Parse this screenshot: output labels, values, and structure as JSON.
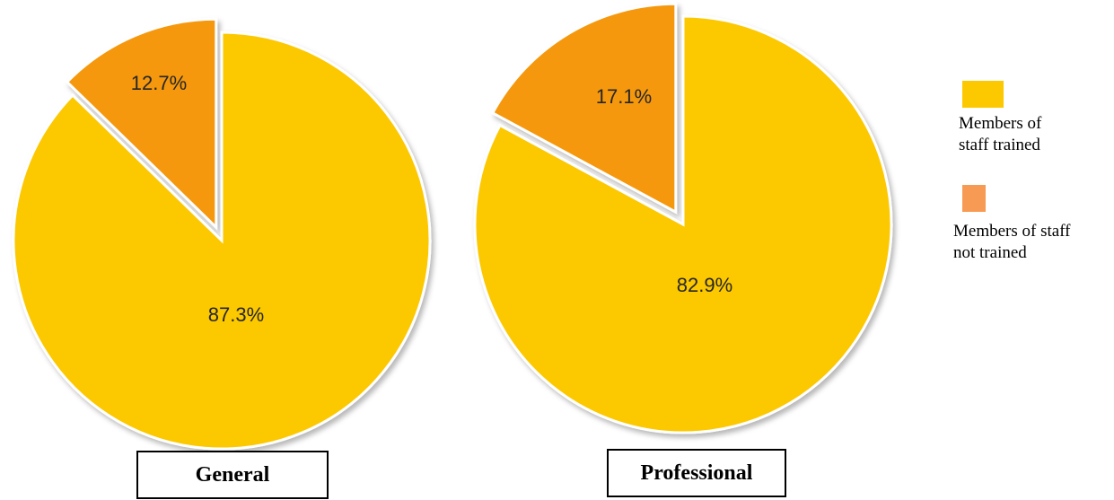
{
  "chart_data": [
    {
      "type": "pie",
      "title": "General",
      "slices": [
        {
          "label": "Members of staff not trained",
          "value": 12.7,
          "value_label": "12.7%",
          "color": "#f5980a",
          "exploded": true
        },
        {
          "label": "Members of staff trained",
          "value": 87.3,
          "value_label": "87.3%",
          "color": "#fcc800",
          "exploded": false
        }
      ]
    },
    {
      "type": "pie",
      "title": "Professional",
      "slices": [
        {
          "label": "Members of staff not trained",
          "value": 17.1,
          "value_label": "17.1%",
          "color": "#f5980a",
          "exploded": true
        },
        {
          "label": "Members of staff trained",
          "value": 82.9,
          "value_label": "82.9%",
          "color": "#fcc800",
          "exploded": false
        }
      ]
    }
  ],
  "legend": [
    {
      "label_line1": "Members of",
      "label_line2": "staff trained",
      "color": "#fcc800"
    },
    {
      "label_line1": "Members of staff",
      "label_line2": "not trained",
      "color": "#f79a53"
    }
  ]
}
